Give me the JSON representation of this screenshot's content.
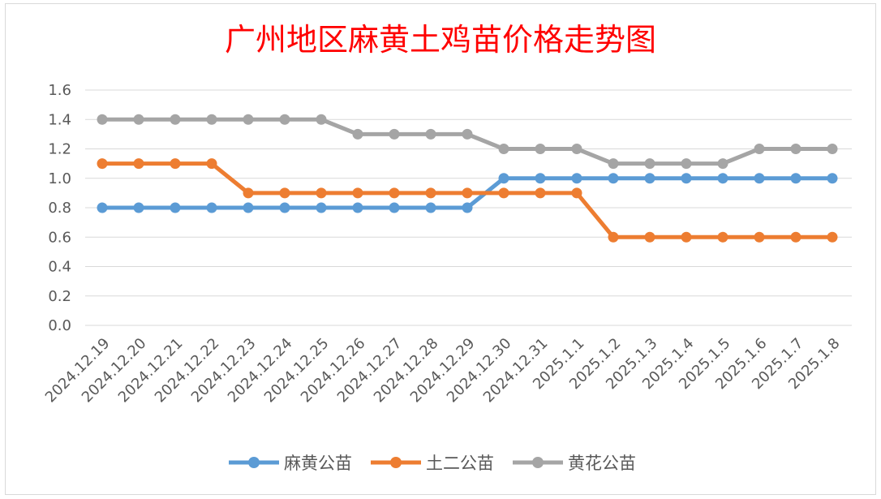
{
  "chart_data": {
    "type": "line",
    "title": "广州地区麻黄土鸡苗价格走势图",
    "xlabel": "",
    "ylabel": "",
    "ylim": [
      0,
      1.6
    ],
    "yticks": [
      "0.0",
      "0.2",
      "0.4",
      "0.6",
      "0.8",
      "1.0",
      "1.2",
      "1.4",
      "1.6"
    ],
    "categories": [
      "2024.12.19",
      "2024.12.20",
      "2024.12.21",
      "2024.12.22",
      "2024.12.23",
      "2024.12.24",
      "2024.12.25",
      "2024.12.26",
      "2024.12.27",
      "2024.12.28",
      "2024.12.29",
      "2024.12.30",
      "2024.12.31",
      "2025.1.1",
      "2025.1.2",
      "2025.1.3",
      "2025.1.4",
      "2025.1.5",
      "2025.1.6",
      "2025.1.7",
      "2025.1.8"
    ],
    "series": [
      {
        "name": "麻黄公苗",
        "color": "#5b9bd5",
        "values": [
          0.8,
          0.8,
          0.8,
          0.8,
          0.8,
          0.8,
          0.8,
          0.8,
          0.8,
          0.8,
          0.8,
          1.0,
          1.0,
          1.0,
          1.0,
          1.0,
          1.0,
          1.0,
          1.0,
          1.0,
          1.0
        ]
      },
      {
        "name": "土二公苗",
        "color": "#ed7d31",
        "values": [
          1.1,
          1.1,
          1.1,
          1.1,
          0.9,
          0.9,
          0.9,
          0.9,
          0.9,
          0.9,
          0.9,
          0.9,
          0.9,
          0.9,
          0.6,
          0.6,
          0.6,
          0.6,
          0.6,
          0.6,
          0.6
        ]
      },
      {
        "name": "黄花公苗",
        "color": "#a5a5a5",
        "values": [
          1.4,
          1.4,
          1.4,
          1.4,
          1.4,
          1.4,
          1.4,
          1.3,
          1.3,
          1.3,
          1.3,
          1.2,
          1.2,
          1.2,
          1.1,
          1.1,
          1.1,
          1.1,
          1.2,
          1.2,
          1.2
        ]
      }
    ],
    "grid": true,
    "legend_position": "bottom"
  }
}
